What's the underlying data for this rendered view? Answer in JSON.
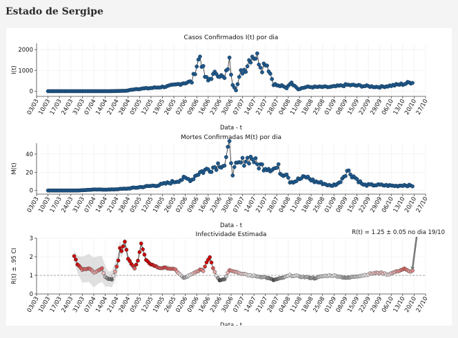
{
  "page_title": "Estado de Sergipe",
  "chart_data": [
    {
      "type": "line",
      "title": "Casos Confirmados I(t) por dia",
      "xlabel": "Data - t",
      "ylabel": "I(t)",
      "ylim": [
        -250,
        2300
      ],
      "yticks": [
        0,
        1000,
        2000
      ],
      "x_tick_labels": [
        "03/03",
        "10/03",
        "17/03",
        "24/03",
        "31/03",
        "07/04",
        "14/04",
        "21/04",
        "28/04",
        "05/05",
        "12/05",
        "19/05",
        "26/05",
        "02/06",
        "09/06",
        "16/06",
        "23/06",
        "30/06",
        "07/07",
        "14/07",
        "21/07",
        "28/07",
        "04/08",
        "11/08",
        "18/08",
        "25/08",
        "01/09",
        "08/09",
        "15/09",
        "22/09",
        "29/09",
        "06/10",
        "13/10",
        "20/10",
        "27/10"
      ],
      "x_start": "03/03",
      "x_end": "27/10",
      "series_color": "#1f5a8e",
      "keyframes_day": [
        7,
        25,
        35,
        45,
        55,
        60,
        70,
        80,
        85,
        90,
        95,
        98,
        100,
        103,
        105,
        106,
        108,
        110,
        115,
        118,
        120,
        122,
        125,
        128,
        130,
        132,
        135,
        138,
        140,
        142,
        145,
        148,
        150,
        153,
        155,
        158,
        160,
        165,
        170,
        175,
        180,
        185,
        190,
        200,
        210,
        220,
        225,
        230
      ],
      "keyframes_value": [
        0,
        0,
        0,
        0,
        20,
        100,
        150,
        230,
        300,
        400,
        450,
        1250,
        1700,
        700,
        500,
        600,
        750,
        900,
        600,
        1450,
        350,
        50,
        900,
        1100,
        1500,
        1750,
        1650,
        1100,
        1450,
        1100,
        350,
        250,
        250,
        150,
        400,
        300,
        100,
        200,
        200,
        200,
        200,
        250,
        300,
        250,
        200,
        300,
        350,
        450
      ]
    },
    {
      "type": "line",
      "title": "Mortes Confirmadas M(t) por dia",
      "xlabel": "Data - t",
      "ylabel": "M(t)",
      "ylim": [
        -4,
        52
      ],
      "yticks": [
        0,
        20,
        40
      ],
      "x_tick_labels": [
        "03/03",
        "10/03",
        "17/03",
        "24/03",
        "31/03",
        "07/04",
        "14/04",
        "21/04",
        "28/04",
        "05/05",
        "12/05",
        "19/05",
        "26/05",
        "02/06",
        "09/06",
        "16/06",
        "23/06",
        "30/06",
        "07/07",
        "14/07",
        "21/07",
        "28/07",
        "04/08",
        "11/08",
        "18/08",
        "25/08",
        "01/09",
        "08/09",
        "15/09",
        "22/09",
        "29/09",
        "06/10",
        "13/10",
        "20/10",
        "27/10"
      ],
      "x_start": "03/03",
      "x_end": "27/10",
      "series_color": "#1f5a8e",
      "keyframes_day": [
        7,
        25,
        35,
        45,
        55,
        65,
        75,
        85,
        90,
        95,
        98,
        100,
        103,
        106,
        109,
        112,
        115,
        118,
        120,
        122,
        125,
        128,
        132,
        135,
        140,
        145,
        148,
        150,
        153,
        155,
        158,
        160,
        165,
        170,
        175,
        180,
        185,
        190,
        200,
        210,
        220,
        225,
        230
      ],
      "keyframes_value": [
        0,
        0,
        1,
        1,
        2,
        4,
        6,
        10,
        13,
        12,
        18,
        20,
        22,
        24,
        26,
        30,
        28,
        48,
        20,
        26,
        30,
        34,
        36,
        28,
        26,
        24,
        25,
        18,
        20,
        10,
        10,
        12,
        15,
        10,
        8,
        5,
        8,
        22,
        6,
        6,
        5,
        6,
        5
      ]
    },
    {
      "type": "line",
      "title": "Infectividade Estimada",
      "xlabel": "Data - t",
      "ylabel": "R(t) ± .95 CI",
      "ylim": [
        0,
        3
      ],
      "yticks": [
        0,
        1,
        2,
        3
      ],
      "reference_line": 1,
      "x_tick_labels": [
        "03/03",
        "10/03",
        "17/03",
        "24/03",
        "31/03",
        "07/04",
        "14/04",
        "21/04",
        "28/04",
        "05/05",
        "12/05",
        "19/05",
        "26/05",
        "02/06",
        "09/06",
        "16/06",
        "23/06",
        "30/06",
        "07/07",
        "14/07",
        "21/07",
        "28/07",
        "04/08",
        "11/08",
        "18/08",
        "25/08",
        "01/09",
        "08/09",
        "15/09",
        "22/09",
        "29/09",
        "06/10",
        "13/10",
        "20/10",
        "27/10"
      ],
      "x_start": "03/03",
      "x_end": "27/10",
      "annotation": "R(t) = 1.25 ± 0.05 no dia 19/10",
      "annotation_day": 230,
      "annotation_value": 1.25,
      "color_scale": {
        "low": "#333333",
        "mid": "#eeeeee",
        "high": "#cc0000"
      },
      "keyframes_day": [
        23,
        25,
        28,
        32,
        35,
        38,
        40,
        42,
        44,
        46,
        48,
        50,
        51,
        52,
        54,
        56,
        58,
        60,
        62,
        64,
        67,
        70,
        75,
        80,
        85,
        90,
        95,
        100,
        102,
        104,
        106,
        108,
        110,
        112,
        115,
        118,
        120,
        125,
        130,
        135,
        140,
        145,
        150,
        155,
        160,
        165,
        170,
        175,
        180,
        185,
        190,
        195,
        200,
        205,
        210,
        215,
        220,
        225,
        228,
        230
      ],
      "keyframes_value": [
        2.05,
        1.6,
        1.3,
        1.4,
        1.15,
        1.3,
        1.35,
        0.95,
        0.8,
        0.8,
        1.2,
        1.8,
        2.5,
        2.3,
        2.8,
        1.9,
        1.6,
        1.4,
        1.8,
        2.7,
        1.8,
        1.6,
        1.4,
        1.4,
        1.3,
        0.85,
        1.05,
        1.3,
        1.25,
        1.7,
        2.0,
        1.4,
        1.0,
        0.75,
        0.8,
        1.3,
        1.25,
        1.1,
        1.0,
        0.95,
        0.9,
        0.75,
        0.85,
        1.0,
        0.95,
        0.9,
        0.85,
        0.95,
        1.0,
        0.95,
        0.85,
        0.95,
        1.0,
        1.1,
        1.15,
        1.05,
        1.2,
        1.35,
        1.2,
        1.25
      ],
      "ci_keyframes_day": [
        23,
        28,
        35,
        40,
        44,
        48,
        52,
        56,
        60,
        70,
        80
      ],
      "ci_keyframes_half": [
        0.3,
        0.7,
        0.8,
        0.7,
        0.4,
        0.5,
        0.35,
        0.25,
        0.15,
        0.1,
        0.07
      ]
    }
  ]
}
